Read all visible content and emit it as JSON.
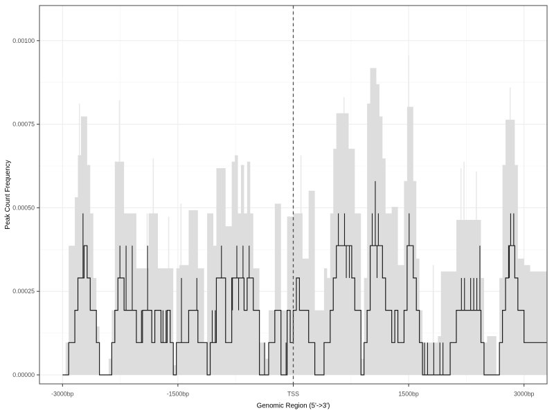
{
  "figure": {
    "background": "#ffffff",
    "type_hint": "average-peak-profile-plot"
  },
  "chart_data": {
    "type": "line",
    "subtype": "step-line-with-confidence-band",
    "title": "",
    "xlabel": "Genomic Region (5'->3')",
    "ylabel": "Peak Count Frequency",
    "x_start_bp": -3000,
    "bin_width_bp": 40,
    "x_data_end_bp": 3320,
    "ylim": [
      0,
      0.0011
    ],
    "grid": "on",
    "legend": "none",
    "freq_quantum": 9.66e-05,
    "note_units": "black_step_levels and band_upper_levels are multiples of freq_quantum (Peak Count Frequency)",
    "black_step_levels": [
      0,
      0,
      1,
      1,
      2,
      3,
      3,
      4,
      3,
      2,
      2,
      1,
      0,
      0,
      0,
      0,
      1,
      2,
      3,
      3,
      2,
      2,
      2,
      2,
      1,
      1,
      2,
      2,
      2,
      1,
      2,
      2,
      1,
      1,
      2,
      1,
      0,
      1,
      1,
      1,
      1,
      2,
      2,
      2,
      1,
      1,
      1,
      0,
      1,
      1,
      3,
      3,
      3,
      1,
      1,
      3,
      3,
      3,
      3,
      2,
      3,
      3,
      2,
      2,
      0,
      0,
      0,
      1,
      1,
      2,
      2,
      0,
      0,
      2,
      1,
      2,
      3,
      2,
      2,
      2,
      1,
      1,
      0,
      0,
      0,
      1,
      1,
      2,
      3,
      4,
      4,
      4,
      4,
      4,
      3,
      2,
      2,
      0,
      1,
      2,
      4,
      4,
      4,
      4,
      3,
      2,
      2,
      1,
      2,
      1,
      1,
      2,
      4,
      4,
      3,
      2,
      1,
      0,
      0,
      0,
      0,
      0,
      0,
      0,
      0,
      0,
      1,
      1,
      2,
      2,
      2,
      2,
      2,
      2,
      2,
      2,
      1,
      0,
      0,
      0,
      0,
      0,
      1,
      2,
      3,
      4,
      4,
      3,
      2,
      2,
      1,
      1,
      1,
      1,
      1,
      1,
      1,
      1
    ],
    "band_upper_levels": [
      0,
      1,
      4,
      4,
      5.5,
      6.8,
      8,
      8,
      6.5,
      5,
      3,
      1.5,
      0,
      0,
      0,
      0.5,
      2,
      6.6,
      6.6,
      6.6,
      5,
      5,
      5,
      5,
      3.3,
      3.3,
      3.3,
      3.3,
      5,
      5,
      5,
      3.3,
      3.3,
      3.3,
      3.3,
      3.3,
      0.3,
      3.3,
      3.4,
      3.4,
      3.4,
      5.1,
      5.1,
      5.1,
      3.3,
      3.3,
      1,
      5,
      5,
      4,
      6.4,
      6.4,
      6.4,
      4.6,
      4.6,
      6.6,
      6.8,
      5,
      6.5,
      5,
      6.6,
      5,
      3.3,
      3.3,
      1,
      1,
      0.5,
      2,
      2,
      5.3,
      5.3,
      2,
      2,
      4.9,
      4.9,
      5,
      5,
      5,
      3.6,
      3.6,
      5.7,
      5.7,
      2,
      2,
      2,
      3.3,
      3,
      5,
      7,
      8.1,
      8.1,
      8.1,
      8.1,
      7,
      7,
      5,
      5,
      0.5,
      3,
      8.4,
      9.5,
      9.5,
      9,
      8,
      6.7,
      5,
      5,
      5.2,
      5.2,
      3.4,
      3.4,
      6,
      8.3,
      8.3,
      6,
      3.6,
      2,
      1,
      1,
      1,
      1,
      1,
      1.2,
      3.2,
      3.2,
      3.2,
      3.2,
      3.2,
      4.8,
      4.8,
      4.8,
      4.8,
      4.8,
      4.8,
      4.8,
      4.8,
      3,
      1,
      1.2,
      1.2,
      1.2,
      0,
      3,
      6.5,
      7.9,
      7.9,
      7.9,
      6.5,
      3.6,
      3.6,
      3.4,
      3.4,
      3.2,
      3.2,
      3.2,
      3.2,
      3.2,
      3.2
    ],
    "black_spikes_up": {
      "6": 5,
      "18": 4,
      "20": 4,
      "22": 4,
      "25": 2,
      "27": 4,
      "32": 2,
      "33": 2,
      "38": 3,
      "43": 3,
      "48": 2,
      "49": 2,
      "51": 4,
      "56": 4,
      "58": 4,
      "60": 4,
      "65": 1,
      "72": 1,
      "89": 5,
      "91": 5,
      "100": 5,
      "101": 6,
      "102": 5,
      "112": 5,
      "117": 1,
      "118": 1,
      "120": 1,
      "122": 1,
      "123": 1,
      "129": 3,
      "130": 3,
      "132": 3,
      "133": 3,
      "134": 3,
      "135": 4,
      "145": 5,
      "146": 5
    },
    "black_dips_down": {
      "55": 2,
      "57": 2,
      "92": 3,
      "93": 3,
      "102": 3,
      "145": 3
    },
    "band_thin_spikes": {
      "5": 8.4,
      "18": 8.5,
      "27": 5,
      "29": 6.7,
      "34": 4.9,
      "38": 5.3,
      "77": 6.8,
      "91": 8.6,
      "112": 9.9,
      "120": 3.4,
      "129": 6.4,
      "130": 6.6,
      "134": 6.3,
      "145": 8.9
    },
    "tss_line_bp": 0,
    "y_ticks": [
      {
        "label": "0.00000",
        "value": 0.0
      },
      {
        "label": "0.00025",
        "value": 0.00025
      },
      {
        "label": "0.00050",
        "value": 0.0005
      },
      {
        "label": "0.00075",
        "value": 0.00075
      },
      {
        "label": "0.00100",
        "value": 0.001
      }
    ],
    "x_ticks": [
      {
        "label": "-3000bp",
        "bp": -3000
      },
      {
        "label": "-1500bp",
        "bp": -1500
      },
      {
        "label": "TSS",
        "bp": 0
      },
      {
        "label": "1500bp",
        "bp": 1500
      },
      {
        "label": "3000bp",
        "bp": 3000
      }
    ]
  },
  "labels": {
    "x_axis_title": "Genomic Region (5'->3')",
    "y_axis_title": "Peak Count Frequency"
  },
  "colors": {
    "band": "#dddddd",
    "band_light": "#e9e9e9",
    "line": "#1a1a1a",
    "grid_major": "#ececec",
    "grid_minor": "#f6f6f6",
    "panel_border": "#555555",
    "tick_mark": "#333333",
    "tick_text": "#4d4d4d",
    "axis_title_text": "#000000",
    "dashed_line": "#4d4d4d"
  }
}
